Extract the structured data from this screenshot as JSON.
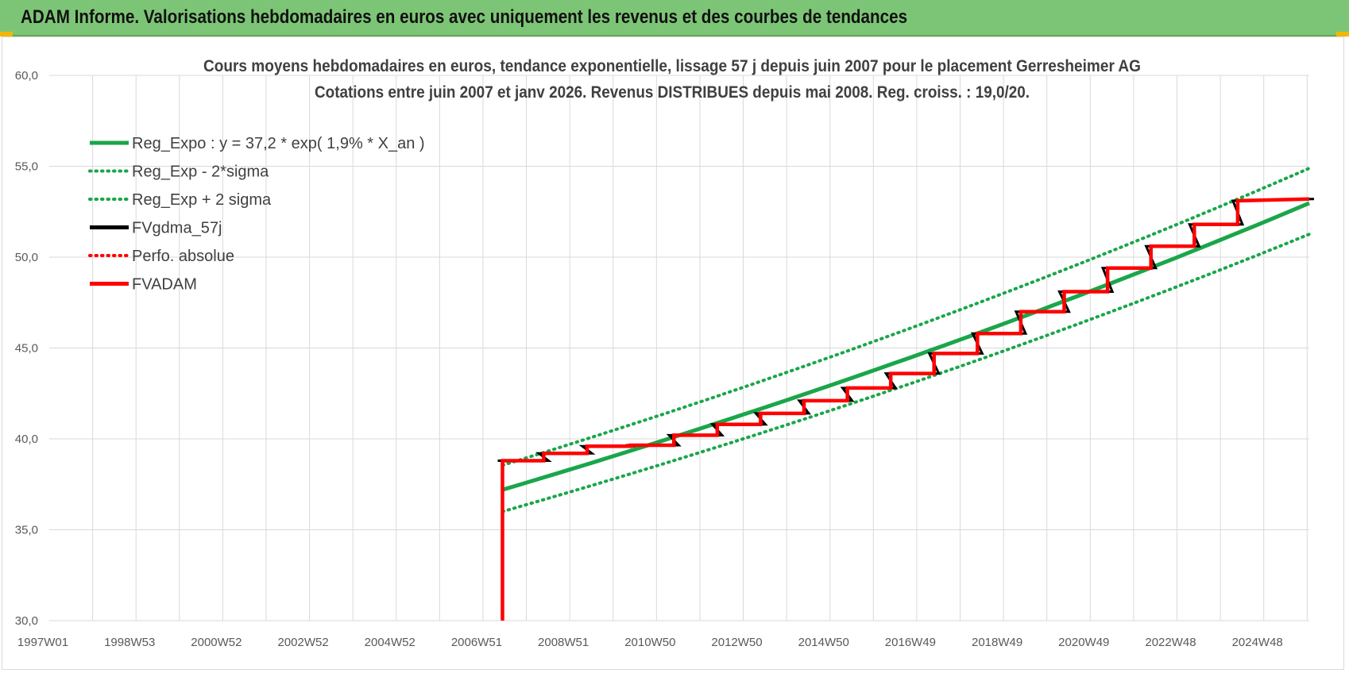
{
  "header": {
    "title": "ADAM Informe. Valorisations hebdomadaires en euros avec uniquement les revenus et des courbes de tendances"
  },
  "colors": {
    "banner": "#7dc576",
    "trend": "#1aa64a",
    "smooth": "#000000",
    "adam": "#ff0000",
    "grid": "#d9d9d9"
  },
  "chart_data": {
    "type": "line",
    "title": "Cours moyens hebdomadaires en euros, tendance exponentielle, lissage 57 j depuis juin 2007 pour le placement Gerresheimer AG",
    "subtitle": "Cotations entre juin 2007 et janv 2026. Revenus DISTRIBUES depuis mai 2008. Reg. croiss. : 19,0/20.",
    "ylim": [
      30,
      60
    ],
    "xlim": [
      1997.0,
      2026.05
    ],
    "y_ticks": [
      "30,0",
      "35,0",
      "40,0",
      "45,0",
      "50,0",
      "55,0",
      "60,0"
    ],
    "x_ticks": [
      "1997W01",
      "1998W53",
      "2000W52",
      "2002W52",
      "2004W52",
      "2006W51",
      "2008W51",
      "2010W50",
      "2012W50",
      "2014W50",
      "2016W49",
      "2018W49",
      "2020W49",
      "2022W48",
      "2024W48"
    ],
    "x_tick_years": [
      1997,
      1999,
      2001,
      2003,
      2005,
      2007,
      2009,
      2011,
      2013,
      2015,
      2017,
      2019,
      2021,
      2023,
      2025
    ],
    "legend": [
      {
        "label": "Reg_Expo : y = 37,2 * exp( 1,9% *  X_an )",
        "style": "solid-green"
      },
      {
        "label": "Reg_Exp - 2*sigma",
        "style": "dotted-green"
      },
      {
        "label": "Reg_Exp + 2 sigma",
        "style": "dotted-green"
      },
      {
        "label": "FVgdma_57j",
        "style": "solid-black"
      },
      {
        "label": "Perfo. absolue",
        "style": "dotted-red"
      },
      {
        "label": "FVADAM",
        "style": "solid-red"
      }
    ],
    "regression": {
      "a": 37.2,
      "rate": 0.019,
      "start": 2007.45,
      "end": 2026.05,
      "sigma2_lower_start": 36.0,
      "sigma2_upper_start": 38.55
    },
    "series": [
      {
        "name": "FVADAM",
        "x": [
          2007.45,
          2007.45,
          2007.45,
          2008.4,
          2008.4,
          2009.4,
          2009.4,
          2010.4,
          2010.4,
          2011.4,
          2011.4,
          2012.4,
          2012.4,
          2013.4,
          2013.4,
          2014.4,
          2014.4,
          2015.4,
          2015.4,
          2016.4,
          2016.4,
          2017.4,
          2017.4,
          2018.4,
          2018.4,
          2019.4,
          2019.4,
          2020.4,
          2020.4,
          2021.4,
          2021.4,
          2022.4,
          2022.4,
          2023.4,
          2023.4,
          2024.4,
          2024.4,
          2026.05
        ],
        "y": [
          30.0,
          38.8,
          38.8,
          38.8,
          39.2,
          39.2,
          39.6,
          39.6,
          39.65,
          39.65,
          40.2,
          40.2,
          40.8,
          40.8,
          41.4,
          41.4,
          42.1,
          42.1,
          42.8,
          42.8,
          43.6,
          43.6,
          44.7,
          44.7,
          45.8,
          45.8,
          47.0,
          47.0,
          48.1,
          48.1,
          49.4,
          49.4,
          50.6,
          50.6,
          51.8,
          51.8,
          53.1,
          53.2
        ]
      }
    ]
  }
}
